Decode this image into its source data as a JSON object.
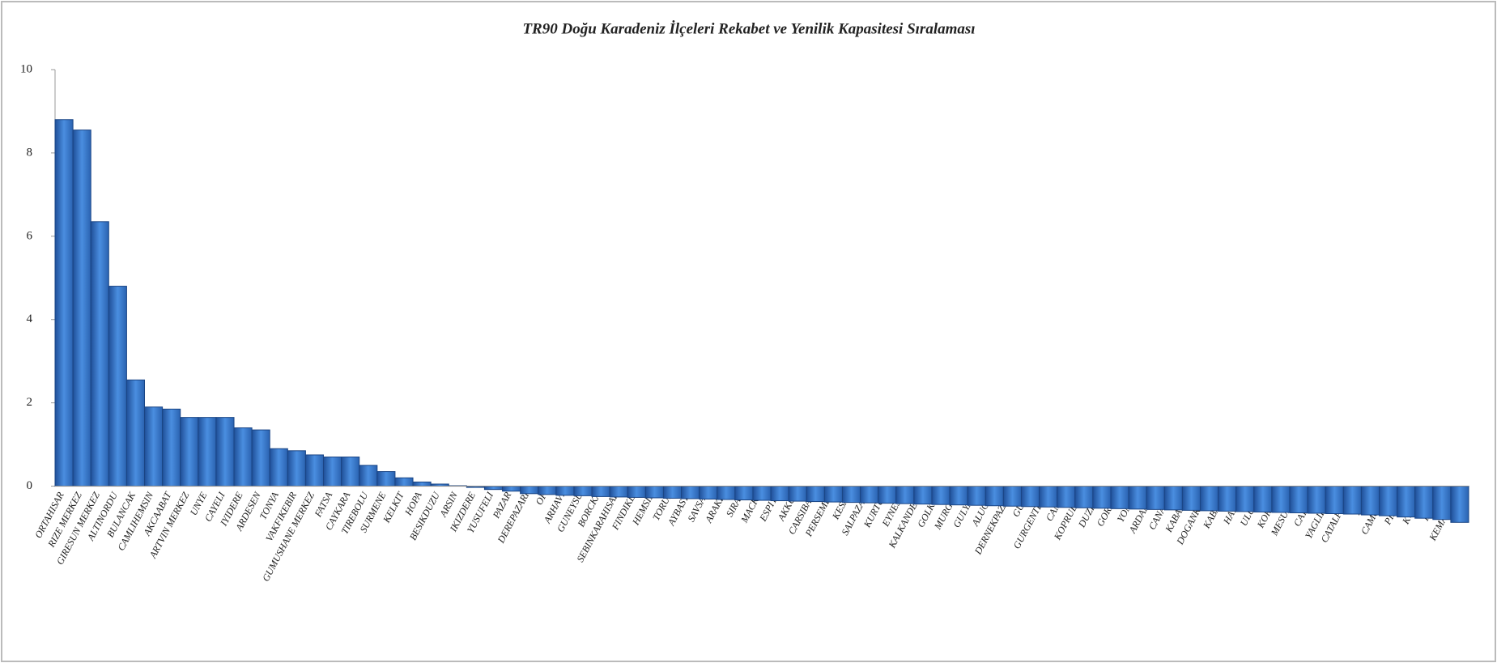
{
  "chart_data": {
    "type": "bar",
    "title": "TR90 Doğu Karadeniz İlçeleri Rekabet ve Yenilik Kapasitesi  Sıralaması",
    "categories": [
      "ORTAHISAR",
      "RIZE MERKEZ",
      "GIRESUN MERKEZ",
      "ALTINORDU",
      "BULANCAK",
      "CAMLIHEMSIN",
      "AKCAABAT",
      "ARTVIN MERKEZ",
      "UNYE",
      "CAYELI",
      "IYIDERE",
      "ARDESEN",
      "TONYA",
      "VAKFIKEBIR",
      "GUMUSHANE MERKEZ",
      "FATSA",
      "CAYKARA",
      "TIREBOLU",
      "SURMENE",
      "KELKIT",
      "HOPA",
      "BESIKDUZU",
      "ARSIN",
      "IKIZDERE",
      "YUSUFELI",
      "PAZAR",
      "DEREPAZARI",
      "OF",
      "ARHAVI",
      "GUNEYSU",
      "BORCKA",
      "SEBINKARAHISAR",
      "FINDIKLI",
      "HEMSIN",
      "TORUL",
      "AYBASTI",
      "SAVSAT",
      "ARAKLI",
      "SIRAN",
      "MACKA",
      "ESPIYE",
      "AKKUS",
      "CARSIBASI",
      "PERSEMBE",
      "KESAP",
      "SALPAZARI",
      "KURTUN",
      "EYNESIL",
      "KALKANDERE",
      "GOLKOY",
      "MURGUL",
      "GULYALI",
      "ALUCRA",
      "DERNEKPAZARI",
      "GUCE",
      "GURGENTEPE",
      "CAMAS",
      "KOPRUBASI",
      "DUZKOY",
      "GORELE",
      "YOMRA",
      "ARDANUC",
      "CANAKCI",
      "KABADUZ",
      "DOGANKENT",
      "KABATAS",
      "HAYRAT",
      "ULUBEY",
      "KORGAN",
      "MESUDIYE",
      "CAYBASI",
      "YAGLIDERE",
      "CATALPINAR",
      "KOSE",
      "CAMOLUK",
      "PIRAZIZ",
      "KUMRU",
      "IKIZCE",
      "KEMALPASA"
    ],
    "values": [
      8.8,
      8.55,
      6.35,
      4.8,
      2.55,
      1.9,
      1.85,
      1.65,
      1.65,
      1.65,
      1.4,
      1.35,
      0.9,
      0.85,
      0.75,
      0.7,
      0.7,
      0.5,
      0.35,
      0.2,
      0.1,
      0.05,
      0.01,
      -0.03,
      -0.08,
      -0.12,
      -0.18,
      -0.2,
      -0.22,
      -0.23,
      -0.25,
      -0.26,
      -0.27,
      -0.28,
      -0.29,
      -0.3,
      -0.31,
      -0.32,
      -0.33,
      -0.34,
      -0.35,
      -0.36,
      -0.37,
      -0.38,
      -0.39,
      -0.4,
      -0.41,
      -0.42,
      -0.43,
      -0.44,
      -0.45,
      -0.46,
      -0.47,
      -0.48,
      -0.49,
      -0.5,
      -0.51,
      -0.52,
      -0.53,
      -0.54,
      -0.55,
      -0.56,
      -0.57,
      -0.58,
      -0.59,
      -0.6,
      -0.61,
      -0.62,
      -0.63,
      -0.64,
      -0.65,
      -0.66,
      -0.67,
      -0.69,
      -0.71,
      -0.74,
      -0.77,
      -0.8,
      -0.87
    ],
    "color": "#3b7bd0",
    "ylim": [
      -1,
      10
    ],
    "yticks": [
      0,
      2,
      4,
      6,
      8,
      10
    ],
    "grid": false
  }
}
